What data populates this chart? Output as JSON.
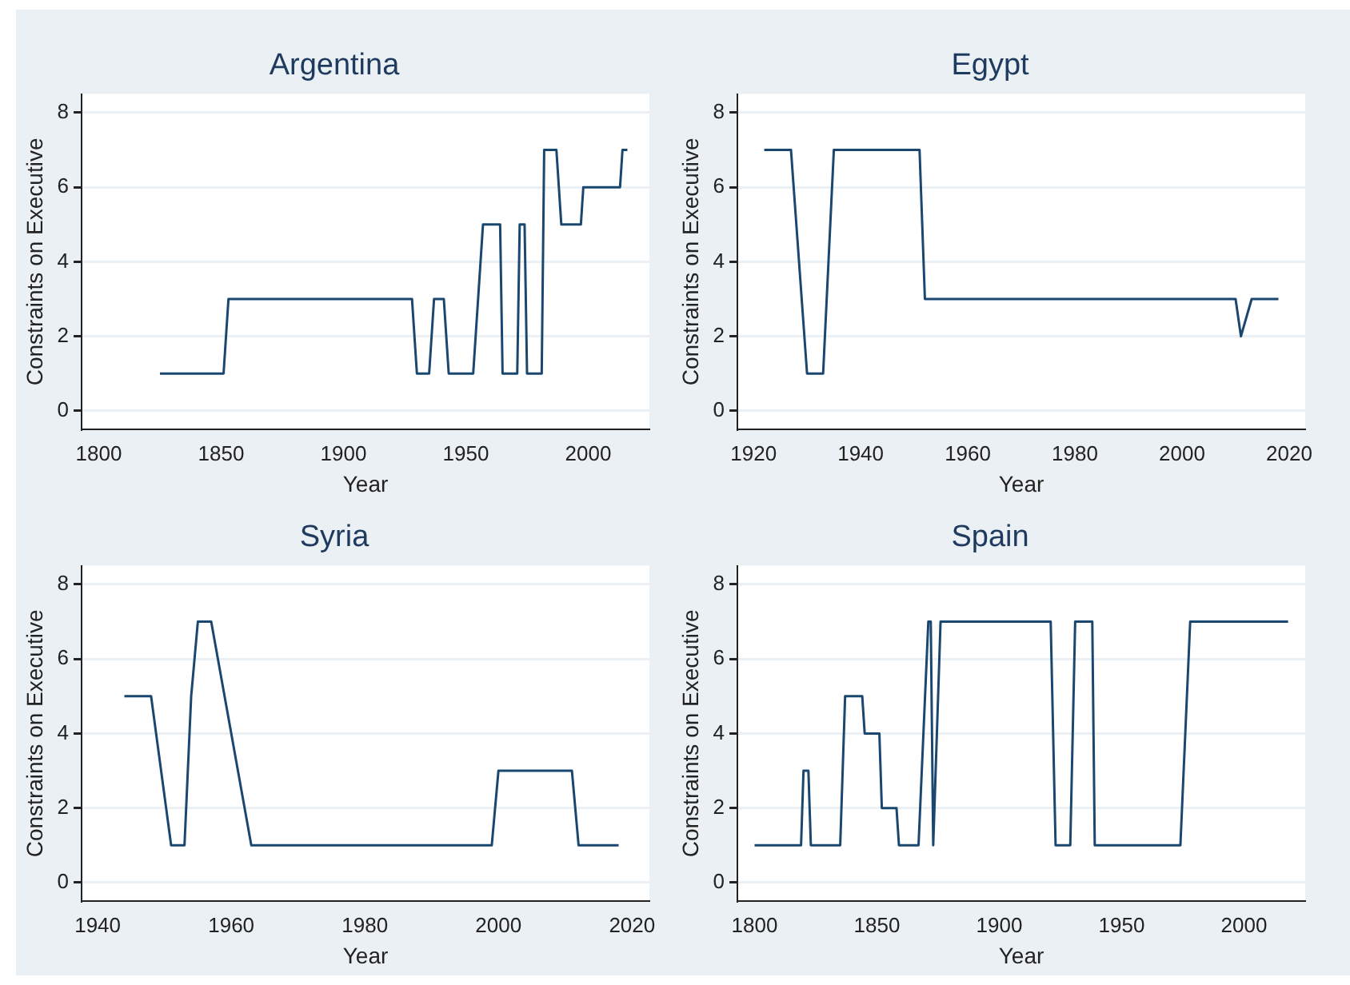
{
  "chart_data": [
    {
      "type": "line",
      "title": "Argentina",
      "xlabel": "Year",
      "ylabel": "Constraints on Executive",
      "xlim": [
        1793,
        2025
      ],
      "xticks": [
        1800,
        1850,
        1900,
        1950,
        2000
      ],
      "ylim": [
        -0.5,
        8.5
      ],
      "yticks": [
        0,
        2,
        4,
        6,
        8
      ],
      "grid": "y",
      "marker": "none",
      "line_style": "solid",
      "legend": false,
      "series": [
        {
          "color": "#1a476f",
          "x": [
            1825,
            1851,
            1853,
            1928,
            1930,
            1935,
            1937,
            1941,
            1943,
            1953,
            1957,
            1964,
            1965,
            1971,
            1972,
            1974,
            1975,
            1981,
            1982,
            1987,
            1989,
            1997,
            1998,
            2013,
            2014,
            2016
          ],
          "values": [
            1,
            1,
            3,
            3,
            1,
            1,
            3,
            3,
            1,
            1,
            5,
            5,
            1,
            1,
            5,
            5,
            1,
            1,
            7,
            7,
            5,
            5,
            6,
            6,
            7,
            7
          ]
        }
      ]
    },
    {
      "type": "line",
      "title": "Egypt",
      "xlabel": "Year",
      "ylabel": "Constraints on Executive",
      "xlim": [
        1917,
        2023
      ],
      "xticks": [
        1920,
        1940,
        1960,
        1980,
        2000,
        2020
      ],
      "ylim": [
        -0.5,
        8.5
      ],
      "yticks": [
        0,
        2,
        4,
        6,
        8
      ],
      "grid": "y",
      "marker": "none",
      "line_style": "solid",
      "legend": false,
      "series": [
        {
          "color": "#1a476f",
          "x": [
            1922,
            1927,
            1930,
            1933,
            1935,
            1951,
            1952,
            2010,
            2011,
            2013,
            2018
          ],
          "values": [
            7,
            7,
            1,
            1,
            7,
            7,
            3,
            3,
            2,
            3,
            3
          ]
        }
      ]
    },
    {
      "type": "line",
      "title": "Syria",
      "xlabel": "Year",
      "ylabel": "Constraints on Executive",
      "xlim": [
        1937.6,
        2022.6
      ],
      "xticks": [
        1940,
        1960,
        1980,
        2000,
        2020
      ],
      "ylim": [
        -0.5,
        8.5
      ],
      "yticks": [
        0,
        2,
        4,
        6,
        8
      ],
      "grid": "y",
      "marker": "none",
      "line_style": "solid",
      "legend": false,
      "series": [
        {
          "color": "#1a476f",
          "x": [
            1944,
            1948,
            1951,
            1953,
            1954,
            1955,
            1957,
            1963,
            1999,
            2000,
            2011,
            2012,
            2018
          ],
          "values": [
            5,
            5,
            1,
            1,
            5,
            7,
            7,
            1,
            1,
            3,
            3,
            1,
            1
          ]
        }
      ]
    },
    {
      "type": "line",
      "title": "Spain",
      "xlabel": "Year",
      "ylabel": "Constraints on Executive",
      "xlim": [
        1793,
        2025
      ],
      "xticks": [
        1800,
        1850,
        1900,
        1950,
        2000
      ],
      "ylim": [
        -0.5,
        8.5
      ],
      "yticks": [
        0,
        2,
        4,
        6,
        8
      ],
      "grid": "y",
      "marker": "none",
      "line_style": "solid",
      "legend": false,
      "series": [
        {
          "color": "#1a476f",
          "x": [
            1800,
            1819,
            1820,
            1822,
            1823,
            1835,
            1837,
            1844,
            1845,
            1851,
            1852,
            1858,
            1859,
            1867,
            1871,
            1872,
            1873,
            1876,
            1921,
            1923,
            1929,
            1931,
            1938,
            1939,
            1974,
            1978,
            2018
          ],
          "values": [
            1,
            1,
            3,
            3,
            1,
            1,
            5,
            5,
            4,
            4,
            2,
            2,
            1,
            1,
            7,
            7,
            1,
            7,
            7,
            1,
            1,
            7,
            7,
            1,
            1,
            7,
            7
          ]
        }
      ]
    }
  ]
}
